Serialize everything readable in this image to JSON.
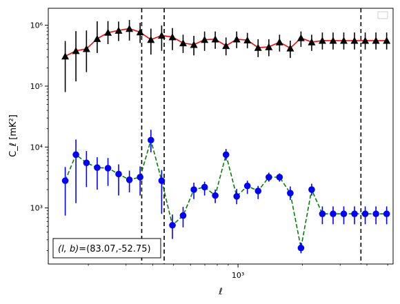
{
  "chart_data": {
    "type": "scatter",
    "xlabel": "ℓ",
    "ylabel": "C_ℓ  [mK²]",
    "xscale": "log",
    "yscale": "log",
    "xlim": [
      130,
      5300
    ],
    "ylim": [
      120,
      1900000
    ],
    "x_ticks": [
      {
        "value": 1000,
        "label": "10³"
      }
    ],
    "y_ticks": [
      {
        "value": 1000,
        "label": "10³"
      },
      {
        "value": 10000,
        "label": "10⁴"
      },
      {
        "value": 100000,
        "label": "10⁵"
      },
      {
        "value": 1000000,
        "label": "10⁶"
      }
    ],
    "grid": false,
    "legend": {
      "placement": "top-right",
      "entries": []
    },
    "vlines": [
      355,
      452,
      3750
    ],
    "annotation": {
      "text_prefix": "(l, b)",
      "text_value": "=(83.07,-52.75)",
      "placement": "bottom-left"
    },
    "series": [
      {
        "marker": "triangle",
        "color": "#000000",
        "line_color": "#ff0000",
        "line_style": "solid",
        "x": [
          156,
          175,
          196,
          220,
          247,
          277,
          311,
          349,
          392,
          440,
          494,
          554,
          622,
          698,
          783,
          879,
          986,
          1106,
          1241,
          1393,
          1563,
          1754,
          1968,
          2208,
          2477,
          2780,
          3119,
          3500,
          3927,
          4407,
          4945
        ],
        "y": [
          310000,
          380000,
          410000,
          600000,
          760000,
          820000,
          880000,
          770000,
          580000,
          680000,
          640000,
          510000,
          480000,
          580000,
          590000,
          460000,
          590000,
          570000,
          430000,
          440000,
          530000,
          420000,
          620000,
          530000,
          560000,
          560000,
          560000,
          560000,
          560000,
          560000,
          560000
        ],
        "yerr": [
          [
            230000,
            260000,
            240000,
            250000,
            270000,
            270000,
            320000,
            260000,
            250000,
            300000,
            250000,
            160000,
            160000,
            200000,
            180000,
            140000,
            170000,
            150000,
            130000,
            130000,
            160000,
            130000,
            180000,
            150000,
            160000,
            160000,
            160000,
            160000,
            160000,
            160000,
            160000
          ],
          [
            240000,
            420000,
            410000,
            560000,
            410000,
            330000,
            340000,
            330000,
            300000,
            310000,
            260000,
            190000,
            190000,
            210000,
            200000,
            170000,
            200000,
            180000,
            160000,
            150000,
            170000,
            140000,
            170000,
            170000,
            200000,
            200000,
            200000,
            200000,
            200000,
            200000,
            200000
          ]
        ]
      },
      {
        "marker": "circle",
        "color": "#0000ff",
        "line_color": "#008000",
        "line_style": "dashed",
        "x": [
          156,
          175,
          196,
          220,
          247,
          277,
          311,
          349,
          392,
          440,
          494,
          554,
          622,
          698,
          783,
          879,
          986,
          1106,
          1241,
          1393,
          1563,
          1754,
          1968,
          2208,
          2477,
          2780,
          3119,
          3500,
          3927,
          4407,
          4945
        ],
        "y": [
          2800,
          7500,
          5500,
          4600,
          4500,
          3600,
          2900,
          3200,
          13000,
          2800,
          520,
          750,
          2000,
          2200,
          1600,
          7500,
          1550,
          2300,
          1900,
          3200,
          3200,
          1750,
          220,
          2000,
          800,
          800,
          800,
          800,
          800,
          800,
          800
        ],
        "yerr": [
          [
            2050,
            6300,
            3300,
            2600,
            2200,
            2000,
            1100,
            1600,
            4800,
            2000,
            210,
            270,
            600,
            600,
            400,
            1500,
            400,
            600,
            500,
            500,
            500,
            400,
            40,
            400,
            260,
            260,
            260,
            260,
            260,
            260,
            260
          ],
          [
            1900,
            5800,
            3100,
            2200,
            2100,
            1600,
            1200,
            1600,
            6200,
            1400,
            260,
            290,
            600,
            500,
            400,
            1800,
            500,
            500,
            400,
            600,
            500,
            500,
            50,
            500,
            260,
            260,
            260,
            260,
            260,
            260,
            260
          ]
        ]
      }
    ]
  }
}
